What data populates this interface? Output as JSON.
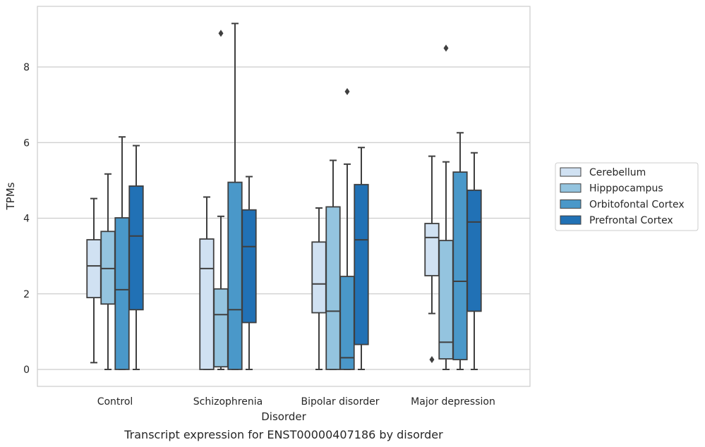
{
  "chart_data": {
    "type": "box",
    "caption": "Transcript expression for ENST00000407186 by disorder",
    "xlabel": "Disorder",
    "ylabel": "TPMs",
    "ylim": [
      -0.4,
      9.7
    ],
    "yticks": [
      0,
      2,
      4,
      6,
      8
    ],
    "grid": "y",
    "legend_placement": "right",
    "categories": [
      "Control",
      "Schizophrenia",
      "Bipolar disorder",
      "Major depression"
    ],
    "series": [
      {
        "name": "Cerebellum",
        "color": "#d0e1f2",
        "boxes": [
          {
            "min": 0.18,
            "q1": 1.9,
            "median": 2.74,
            "q3": 3.43,
            "max": 4.52,
            "outliers": []
          },
          {
            "min": 0.0,
            "q1": 0.0,
            "median": 2.67,
            "q3": 3.45,
            "max": 4.56,
            "outliers": []
          },
          {
            "min": 0.0,
            "q1": 1.5,
            "median": 2.26,
            "q3": 3.37,
            "max": 4.27,
            "outliers": []
          },
          {
            "min": 1.48,
            "q1": 2.48,
            "median": 3.49,
            "q3": 3.86,
            "max": 5.64,
            "outliers": [
              0.26
            ]
          }
        ]
      },
      {
        "name": "Hipppocampus",
        "color": "#94c4df",
        "boxes": [
          {
            "min": 0.0,
            "q1": 1.73,
            "median": 2.67,
            "q3": 3.65,
            "max": 5.17,
            "outliers": []
          },
          {
            "min": 0.0,
            "q1": 0.07,
            "median": 1.45,
            "q3": 2.13,
            "max": 4.05,
            "outliers": [
              8.89
            ]
          },
          {
            "min": 0.0,
            "q1": 0.0,
            "median": 1.54,
            "q3": 4.3,
            "max": 5.53,
            "outliers": []
          },
          {
            "min": 0.0,
            "q1": 0.28,
            "median": 0.72,
            "q3": 3.41,
            "max": 5.49,
            "outliers": [
              8.5
            ]
          }
        ]
      },
      {
        "name": "Orbitofontal Cortex",
        "color": "#4a98c9",
        "boxes": [
          {
            "min": 0.0,
            "q1": 0.0,
            "median": 2.11,
            "q3": 4.01,
            "max": 6.15,
            "outliers": []
          },
          {
            "min": 0.0,
            "q1": 0.0,
            "median": 1.58,
            "q3": 4.95,
            "max": 9.15,
            "outliers": []
          },
          {
            "min": 0.0,
            "q1": 0.0,
            "median": 0.31,
            "q3": 2.46,
            "max": 5.43,
            "outliers": [
              7.35
            ]
          },
          {
            "min": 0.0,
            "q1": 0.26,
            "median": 2.33,
            "q3": 5.22,
            "max": 6.26,
            "outliers": []
          }
        ]
      },
      {
        "name": "Prefrontal Cortex",
        "color": "#2171b5",
        "boxes": [
          {
            "min": 0.0,
            "q1": 1.58,
            "median": 3.53,
            "q3": 4.85,
            "max": 5.92,
            "outliers": []
          },
          {
            "min": 0.0,
            "q1": 1.24,
            "median": 3.25,
            "q3": 4.22,
            "max": 5.1,
            "outliers": []
          },
          {
            "min": 0.0,
            "q1": 0.66,
            "median": 3.43,
            "q3": 4.89,
            "max": 5.87,
            "outliers": []
          },
          {
            "min": 0.0,
            "q1": 1.54,
            "median": 3.9,
            "q3": 4.74,
            "max": 5.73,
            "outliers": []
          }
        ]
      }
    ]
  }
}
